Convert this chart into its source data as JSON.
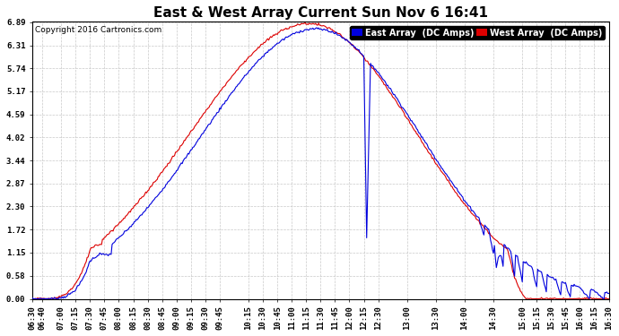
{
  "title": "East & West Array Current Sun Nov 6 16:41",
  "copyright": "Copyright 2016 Cartronics.com",
  "legend_east": "East Array  (DC Amps)",
  "legend_west": "West Array  (DC Amps)",
  "east_color": "#0000dd",
  "west_color": "#dd0000",
  "background_color": "#ffffff",
  "plot_bg_color": "#ffffff",
  "grid_color": "#bbbbbb",
  "yticks": [
    0.0,
    0.58,
    1.15,
    1.72,
    2.3,
    2.87,
    3.44,
    4.02,
    4.59,
    5.17,
    5.74,
    6.31,
    6.89
  ],
  "ymax": 6.89,
  "ymin": 0.0,
  "xtick_labels": [
    "06:30",
    "06:40",
    "07:00",
    "07:15",
    "07:30",
    "07:45",
    "08:00",
    "08:15",
    "08:30",
    "08:45",
    "09:00",
    "09:15",
    "09:30",
    "09:45",
    "10:15",
    "10:30",
    "10:45",
    "11:00",
    "11:15",
    "11:30",
    "11:45",
    "12:00",
    "12:15",
    "12:30",
    "13:00",
    "13:30",
    "14:00",
    "14:30",
    "15:00",
    "15:15",
    "15:30",
    "15:45",
    "16:00",
    "16:15",
    "16:30"
  ],
  "title_fontsize": 11,
  "axis_fontsize": 6.5,
  "legend_fontsize": 7
}
